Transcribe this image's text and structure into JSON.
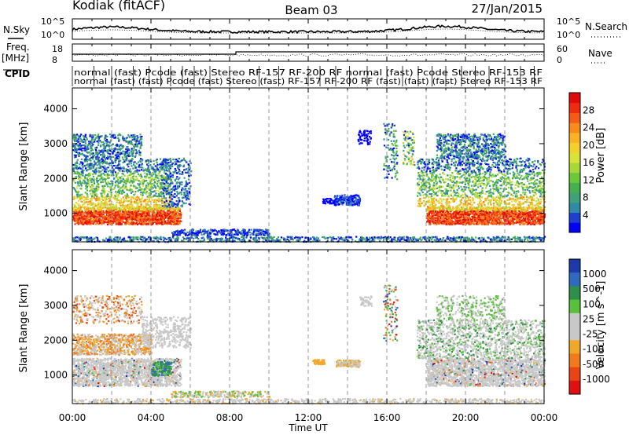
{
  "header": {
    "station": "Kodiak (fitACF)",
    "beam": "Beam 03",
    "date": "27/Jan/2015"
  },
  "panels": {
    "nsky_label": "N.Sky",
    "nsearch_label": "N.Search",
    "nsky_ticks": [
      "10^5",
      "10^0"
    ],
    "nsearch_ticks": [
      "10^5",
      "10^0"
    ],
    "freq_label": "Freq.",
    "freq_unit": "[MHz]",
    "freq_ticks": [
      "18",
      "8"
    ],
    "nave_label": "Nave",
    "nave_ticks": [
      "60",
      "0"
    ],
    "cpid_label": "CPID",
    "cpid_row1": "normal (fast) Pcode (fast) Stereo RF-157 RF-200 RF normal (fast) Pcode Stereo RF-153 RF",
    "cpid_row2": "normal (fast) (fast) Pcode (fast) Stereo (fast) RF-157 RF-200 RF (fast) (fast) (fast) Stereo RF-153 RF"
  },
  "chart_data": [
    {
      "type": "heatmap",
      "title": "",
      "xlabel": "Time UT",
      "ylabel": "Slant Range [km]",
      "x_ticks": [
        "00:00",
        "04:00",
        "08:00",
        "12:00",
        "16:00",
        "20:00",
        "00:00"
      ],
      "y_ticks": [
        1000,
        2000,
        3000,
        4000
      ],
      "ylim": [
        180,
        4600
      ],
      "grid": "dashed vertical lines every 2 h",
      "colorbar": {
        "label": "Power [dB]",
        "ticks": [
          4,
          8,
          12,
          16,
          20,
          24,
          28
        ],
        "colors": [
          "#0000ff",
          "#1e3fd0",
          "#2f8aa8",
          "#3fa07a",
          "#45b04e",
          "#6cc83a",
          "#a8d838",
          "#d8e23a",
          "#f4d02a",
          "#fbb324",
          "#fb8a1c",
          "#f55a16",
          "#ef2b10",
          "#e00a0a"
        ]
      },
      "series": [
        {
          "time_h": [
            0,
            1,
            2,
            3,
            4,
            4.5,
            5,
            5.5,
            18,
            19,
            20,
            21,
            22,
            23,
            24
          ],
          "range_km": [
            900,
            900,
            920,
            950,
            900,
            1000,
            1200,
            1400,
            1000,
            950,
            920,
            900,
            900,
            920,
            950
          ]
        },
        {
          "time_h": [
            13.3,
            13.7,
            14.1,
            14.5
          ],
          "range_km": [
            1400,
            1380,
            1350,
            1320
          ]
        }
      ]
    },
    {
      "type": "heatmap",
      "title": "",
      "xlabel": "Time UT",
      "ylabel": "Slant Range [km]",
      "x_ticks": [
        "00:00",
        "04:00",
        "08:00",
        "12:00",
        "16:00",
        "20:00",
        "00:00"
      ],
      "y_ticks": [
        1000,
        2000,
        3000,
        4000
      ],
      "ylim": [
        180,
        4600
      ],
      "colorbar": {
        "label": "Velocity [m s^-1]",
        "ticks": [
          1000,
          500,
          100,
          25,
          -25,
          -100,
          -500,
          -1000
        ],
        "colors": [
          "#1c3aa8",
          "#2f6ac0",
          "#2e8f4a",
          "#58c03a",
          "#c8c8c8",
          "#c8c8c8",
          "#f0a82a",
          "#f07a1c",
          "#e84414",
          "#e01010"
        ]
      },
      "series": [
        {
          "time_h": [
            0,
            1,
            2,
            3,
            4
          ],
          "range_km": [
            1800,
            1850,
            1900,
            2000,
            2100
          ]
        },
        {
          "time_h": [
            12.2,
            12.6,
            13.0,
            14.0,
            14.6
          ],
          "range_km": [
            1400,
            1380,
            1380,
            1300,
            1300
          ]
        }
      ]
    }
  ]
}
